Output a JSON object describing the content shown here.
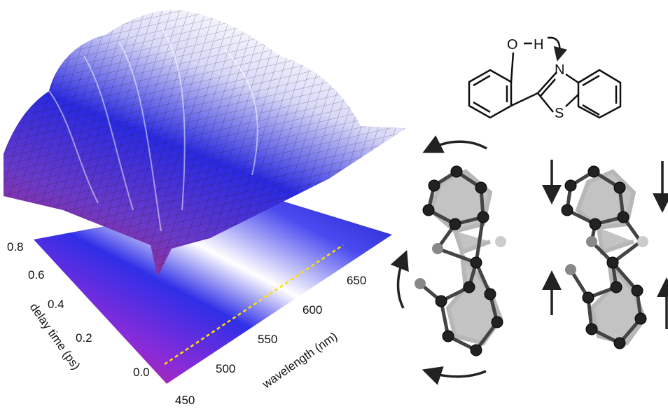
{
  "surface_plot": {
    "delay_axis": {
      "label": "delay time (ps)",
      "ticks": [
        "0.8",
        "0.6",
        "0.4",
        "0.2",
        "0.0"
      ]
    },
    "wavelength_axis": {
      "label": "wavelength (nm)",
      "ticks": [
        "450",
        "500",
        "550",
        "600",
        "650"
      ]
    }
  },
  "molecule": {
    "atoms": [
      "O",
      "H",
      "N",
      "S"
    ]
  }
}
